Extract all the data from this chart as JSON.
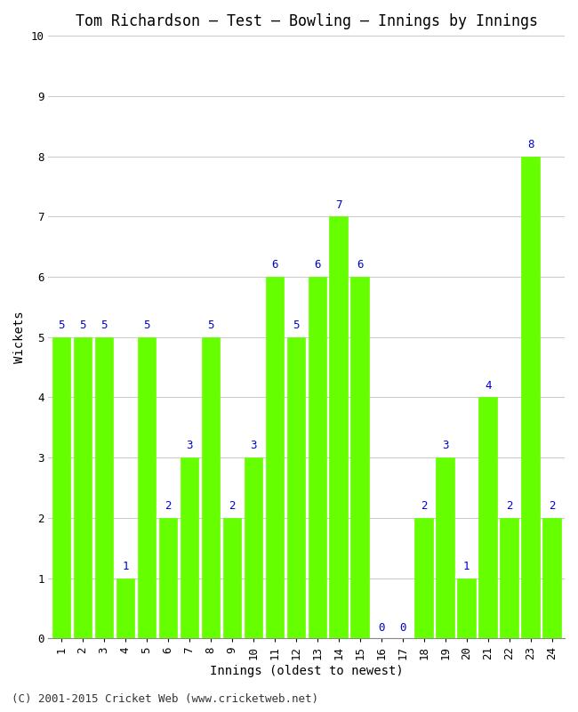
{
  "title": "Tom Richardson – Test – Bowling – Innings by Innings",
  "xlabel": "Innings (oldest to newest)",
  "ylabel": "Wickets",
  "bar_color": "#66ff00",
  "label_color": "#0000cc",
  "background_color": "#ffffff",
  "grid_color": "#cccccc",
  "innings": [
    1,
    2,
    3,
    4,
    5,
    6,
    7,
    8,
    9,
    10,
    11,
    12,
    13,
    14,
    15,
    16,
    17,
    18,
    19,
    20,
    21,
    22,
    23,
    24
  ],
  "wickets": [
    5,
    5,
    5,
    1,
    5,
    2,
    3,
    5,
    2,
    3,
    6,
    5,
    6,
    7,
    6,
    0,
    0,
    2,
    3,
    1,
    4,
    2,
    8,
    2
  ],
  "ylim": [
    0,
    10
  ],
  "yticks": [
    0,
    1,
    2,
    3,
    4,
    5,
    6,
    7,
    8,
    9,
    10
  ],
  "footer": "(C) 2001-2015 Cricket Web (www.cricketweb.net)",
  "title_fontsize": 12,
  "axis_label_fontsize": 10,
  "tick_fontsize": 9,
  "bar_label_fontsize": 9,
  "footer_fontsize": 9
}
